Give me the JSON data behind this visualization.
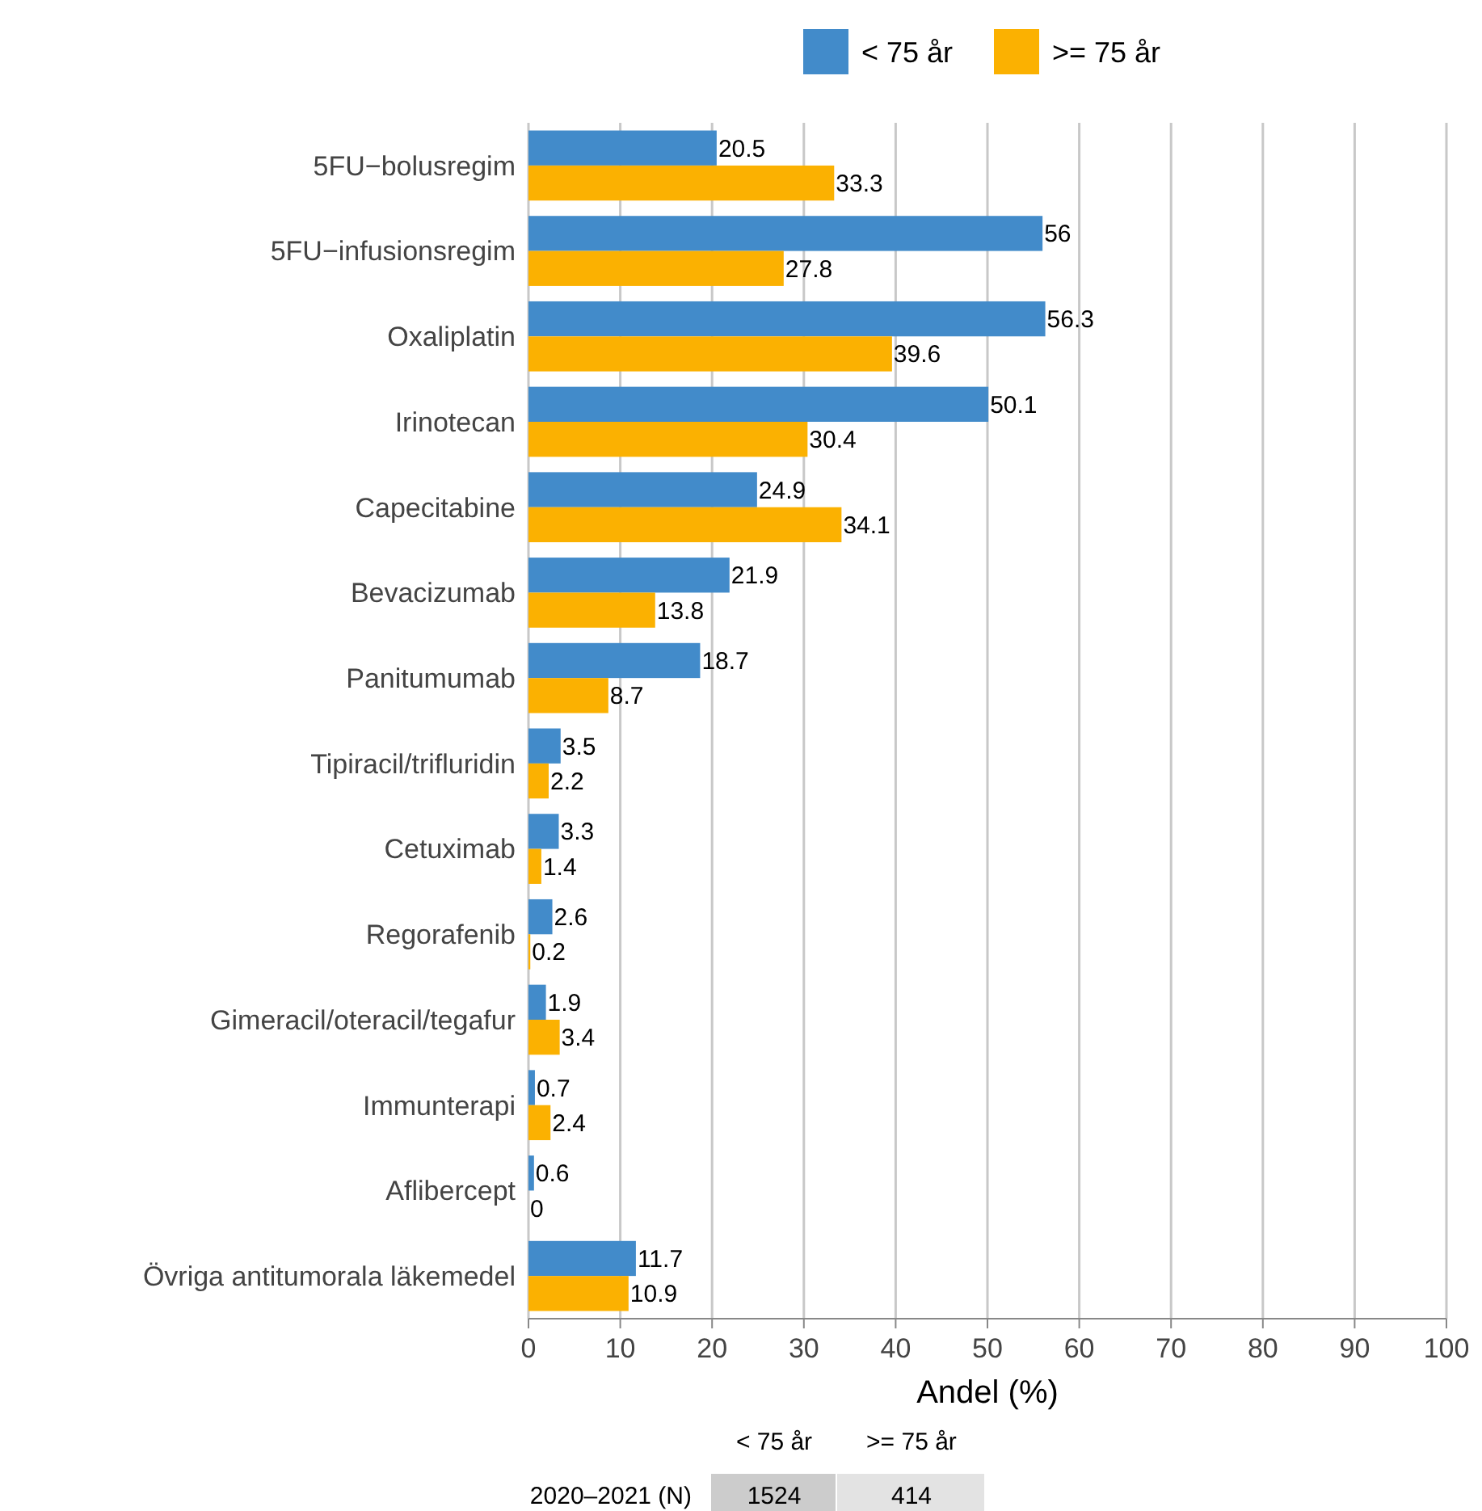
{
  "chart_data": {
    "type": "bar",
    "orientation": "horizontal",
    "xlabel": "Andel (%)",
    "categories": [
      "5FU−bolusregim",
      "5FU−infusionsregim",
      "Oxaliplatin",
      "Irinotecan",
      "Capecitabine",
      "Bevacizumab",
      "Panitumumab",
      "Tipiracil/trifluridin",
      "Cetuximab",
      "Regorafenib",
      "Gimeracil/oteracil/tegafur",
      "Immunterapi",
      "Aflibercept",
      "Övriga antitumorala läkemedel"
    ],
    "series": [
      {
        "name": "< 75 år",
        "color": "#428bca",
        "values": [
          20.5,
          56,
          56.3,
          50.1,
          24.9,
          21.9,
          18.7,
          3.5,
          3.3,
          2.6,
          1.9,
          0.7,
          0.6,
          11.7
        ]
      },
      {
        "name": ">= 75 år",
        "color": "#fbb101",
        "values": [
          33.3,
          27.8,
          39.6,
          30.4,
          34.1,
          13.8,
          8.7,
          2.2,
          1.4,
          0.2,
          3.4,
          2.4,
          0,
          10.9
        ]
      }
    ],
    "xlim": [
      0,
      100
    ],
    "xticks": [
      0,
      10,
      20,
      30,
      40,
      50,
      60,
      70,
      80,
      90,
      100
    ],
    "grid": "x",
    "legend": "top",
    "data_labels": true,
    "annotations": [
      "2020–2021 (N)",
      "1524",
      "414"
    ]
  }
}
